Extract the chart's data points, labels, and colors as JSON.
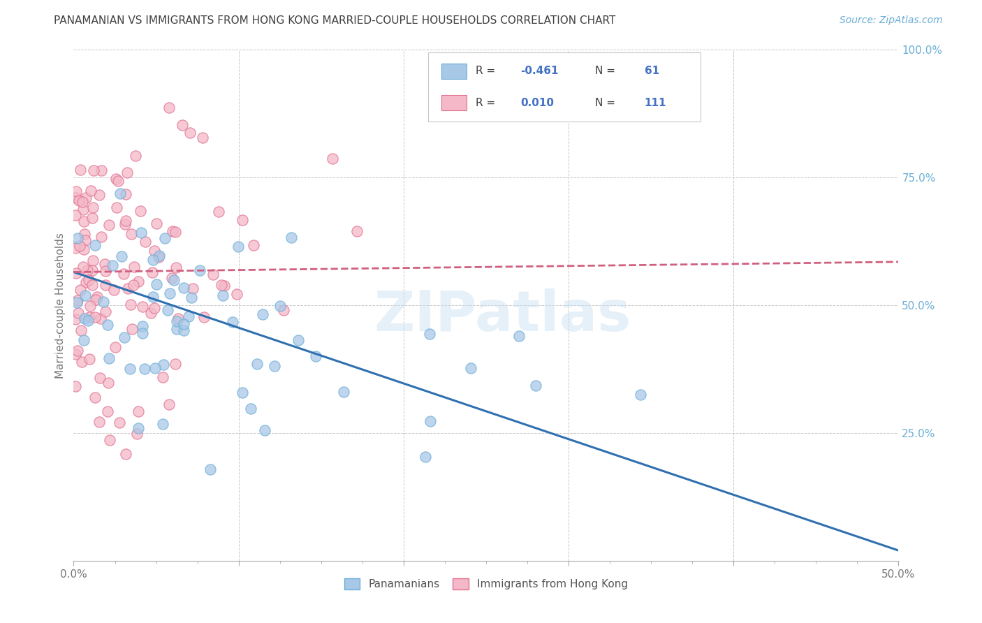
{
  "title": "PANAMANIAN VS IMMIGRANTS FROM HONG KONG MARRIED-COUPLE HOUSEHOLDS CORRELATION CHART",
  "source": "Source: ZipAtlas.com",
  "ylabel": "Married-couple Households",
  "xlim": [
    0.0,
    0.5
  ],
  "ylim": [
    0.0,
    1.0
  ],
  "color_blue_scatter": "#a8c8e8",
  "color_blue_edge": "#6baed6",
  "color_pink_scatter": "#f4b8c8",
  "color_pink_edge": "#e07090",
  "color_line_blue": "#3070b0",
  "color_line_pink": "#d06080",
  "color_grid": "#c8c8c8",
  "color_title": "#404040",
  "color_source": "#6baed6",
  "color_axis_right": "#6baed6",
  "color_r_value": "#4472c4",
  "color_r_label": "#404040",
  "watermark": "ZIPatlas",
  "blue_trend_x": [
    0.0,
    0.5
  ],
  "blue_trend_y": [
    0.565,
    0.02
  ],
  "pink_trend_x": [
    0.0,
    0.5
  ],
  "pink_trend_y": [
    0.565,
    0.585
  ]
}
